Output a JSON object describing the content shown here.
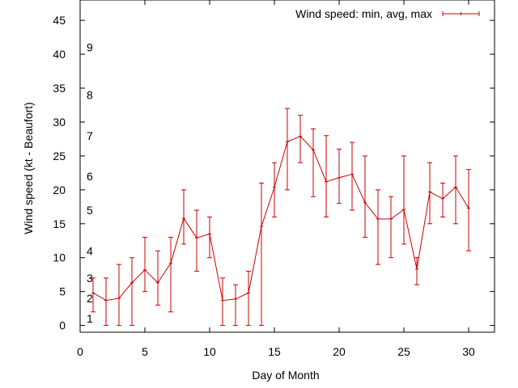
{
  "chart_data": {
    "type": "line",
    "title": "",
    "xlabel": "Day of Month",
    "ylabel": "Wind speed (kt - Beaufort)",
    "xlim": [
      0,
      32
    ],
    "ylim": [
      -1,
      48
    ],
    "xticks": [
      0,
      5,
      10,
      15,
      20,
      25,
      30
    ],
    "yticks": [
      0,
      5,
      10,
      15,
      20,
      25,
      30,
      35,
      40,
      45
    ],
    "grid": false,
    "legend_position": "top-right",
    "series": [
      {
        "name": "Wind speed: min, avg, max",
        "color": "#cc0000",
        "x": [
          1,
          2,
          3,
          4,
          5,
          6,
          7,
          8,
          9,
          10,
          11,
          12,
          13,
          14,
          15,
          16,
          17,
          18,
          19,
          20,
          21,
          22,
          23,
          24,
          25,
          26,
          27,
          28,
          29,
          30
        ],
        "avg": [
          4.8,
          3.7,
          4.0,
          6.3,
          8.2,
          6.3,
          9.2,
          15.8,
          12.9,
          13.5,
          3.7,
          3.9,
          4.8,
          14.6,
          20.4,
          27.1,
          27.9,
          25.9,
          21.2,
          21.8,
          22.3,
          18.1,
          15.7,
          15.7,
          17.1,
          8.3,
          19.7,
          18.7,
          20.4,
          17.3
        ],
        "min": [
          2,
          0,
          0,
          0,
          5,
          3,
          2,
          12,
          8,
          10,
          0,
          0,
          0,
          0,
          16,
          20,
          24,
          19,
          16,
          18,
          17,
          13,
          9,
          10,
          12,
          6,
          15,
          16,
          15,
          11
        ],
        "max": [
          7,
          7,
          9,
          10,
          13,
          11,
          13,
          20,
          17,
          16,
          7,
          6,
          8,
          21,
          24,
          32,
          31,
          29,
          28,
          26,
          27,
          25,
          20,
          19,
          25,
          10,
          24,
          21,
          25,
          23
        ]
      }
    ],
    "beaufort": [
      {
        "label": "1",
        "kt": 1
      },
      {
        "label": "2",
        "kt": 4
      },
      {
        "label": "3",
        "kt": 7
      },
      {
        "label": "4",
        "kt": 11
      },
      {
        "label": "5",
        "kt": 17
      },
      {
        "label": "6",
        "kt": 22
      },
      {
        "label": "7",
        "kt": 28
      },
      {
        "label": "8",
        "kt": 34
      },
      {
        "label": "9",
        "kt": 41
      }
    ]
  }
}
